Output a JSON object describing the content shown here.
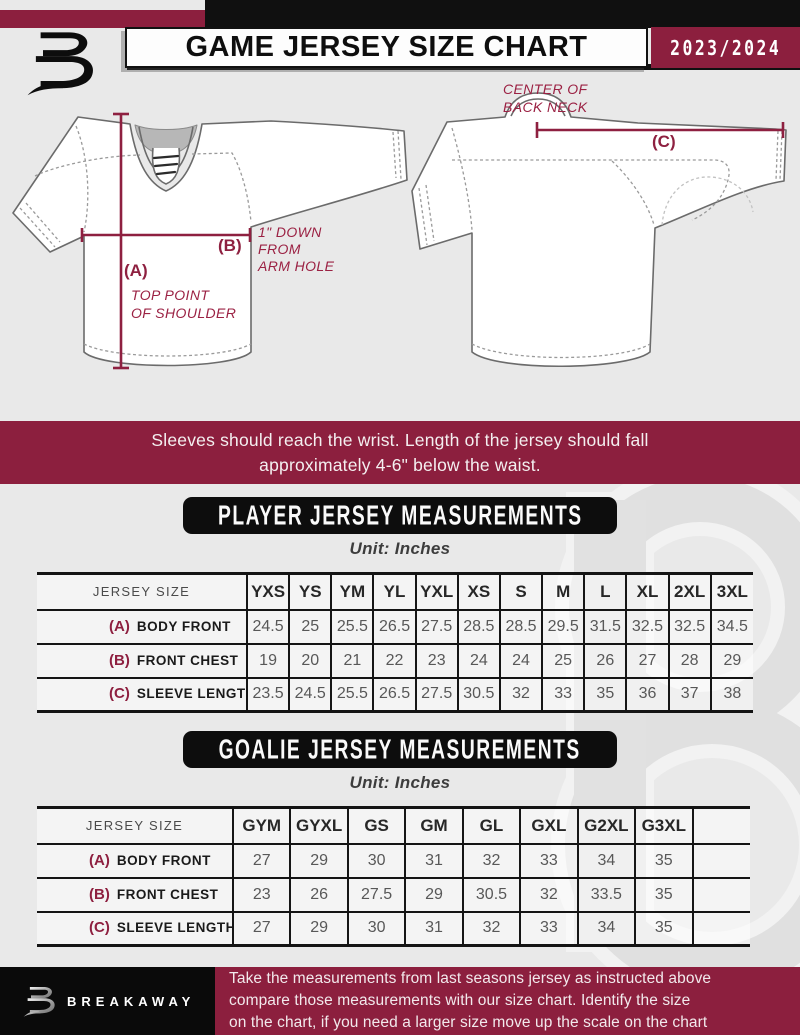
{
  "colors": {
    "maroon": "#8C1F3E",
    "black": "#101010",
    "page_bg": "#E9E9E9",
    "accent_text": "#9B2143"
  },
  "header": {
    "title": "GAME JERSEY SIZE CHART",
    "season": "2023/2024",
    "logo": "breakaway-b-logo"
  },
  "diagram": {
    "back_neck_note": {
      "line1": "CENTER OF",
      "line2": "BACK NECK"
    },
    "marker_a": "(A)",
    "marker_b": "(B)",
    "marker_c": "(C)",
    "a_note": {
      "line1": "TOP POINT",
      "line2": "OF SHOULDER"
    },
    "b_note": {
      "line1": "1\" DOWN",
      "line2": "FROM",
      "line3": "ARM HOLE"
    }
  },
  "banner": {
    "line1": "Sleeves should reach the wrist. Length of the jersey should fall",
    "line2": "approximately 4-6\" below the waist."
  },
  "player_section": {
    "heading": "PLAYER JERSEY MEASUREMENTS",
    "unit": "Unit: Inches",
    "table": {
      "row_header": "JERSEY SIZE",
      "sizes": [
        "YXS",
        "YS",
        "YM",
        "YL",
        "YXL",
        "XS",
        "S",
        "M",
        "L",
        "XL",
        "2XL",
        "3XL"
      ],
      "extra_blank_col": false,
      "rows": [
        {
          "marker": "(A)",
          "label": "BODY FRONT",
          "values": [
            "24.5",
            "25",
            "25.5",
            "26.5",
            "27.5",
            "28.5",
            "28.5",
            "29.5",
            "31.5",
            "32.5",
            "32.5",
            "34.5"
          ]
        },
        {
          "marker": "(B)",
          "label": "FRONT CHEST",
          "values": [
            "19",
            "20",
            "21",
            "22",
            "23",
            "24",
            "24",
            "25",
            "26",
            "27",
            "28",
            "29"
          ]
        },
        {
          "marker": "(C)",
          "label": "SLEEVE LENGTH",
          "values": [
            "23.5",
            "24.5",
            "25.5",
            "26.5",
            "27.5",
            "30.5",
            "32",
            "33",
            "35",
            "36",
            "37",
            "38"
          ]
        }
      ]
    }
  },
  "goalie_section": {
    "heading": "GOALIE JERSEY MEASUREMENTS",
    "unit": "Unit: Inches",
    "table": {
      "row_header": "JERSEY SIZE",
      "sizes": [
        "GYM",
        "GYXL",
        "GS",
        "GM",
        "GL",
        "GXL",
        "G2XL",
        "G3XL"
      ],
      "extra_blank_col": true,
      "rows": [
        {
          "marker": "(A)",
          "label": "BODY FRONT",
          "values": [
            "27",
            "29",
            "30",
            "31",
            "32",
            "33",
            "34",
            "35"
          ]
        },
        {
          "marker": "(B)",
          "label": "FRONT CHEST",
          "values": [
            "23",
            "26",
            "27.5",
            "29",
            "30.5",
            "32",
            "33.5",
            "35"
          ]
        },
        {
          "marker": "(C)",
          "label": "SLEEVE LENGTH",
          "values": [
            "27",
            "29",
            "30",
            "31",
            "32",
            "33",
            "34",
            "35"
          ]
        }
      ]
    }
  },
  "footer": {
    "brand": "BREAKAWAY",
    "note_line1": "Take the measurements from last seasons jersey as instructed above",
    "note_line2": "compare those measurements  with our size chart. Identify the size",
    "note_line3": "on the chart, if you need a larger size move up the scale on the chart"
  }
}
